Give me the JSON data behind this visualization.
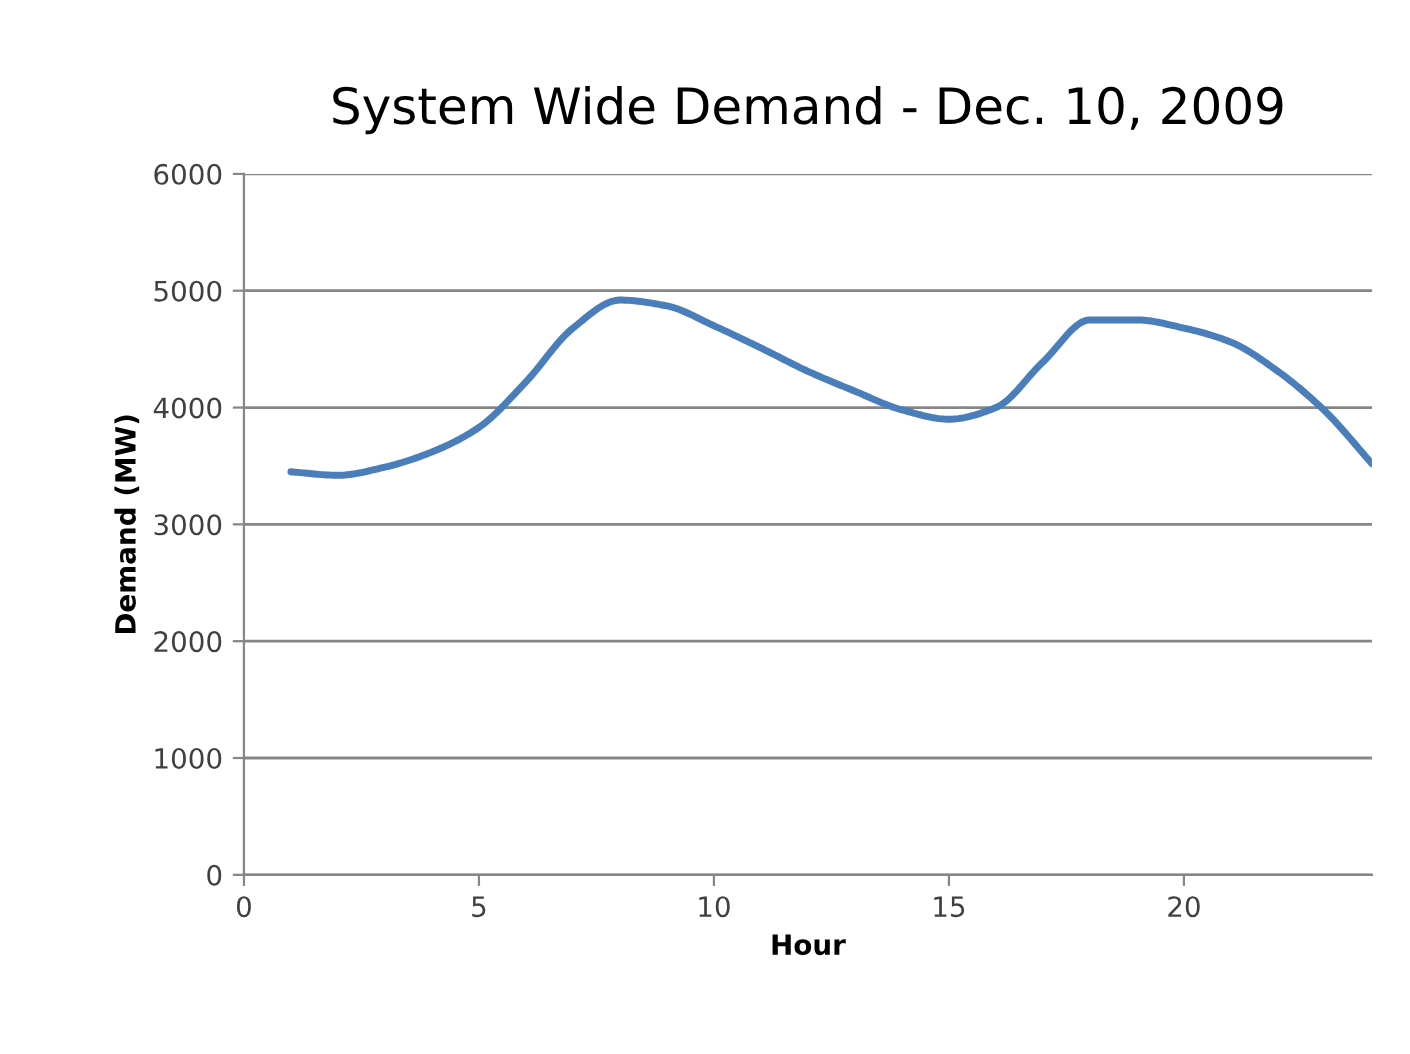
{
  "chart_data": {
    "type": "line",
    "title": "System Wide Demand - Dec. 10, 2009",
    "xlabel": "Hour",
    "ylabel": "Demand (MW)",
    "x": [
      1,
      2,
      3,
      4,
      5,
      6,
      7,
      8,
      9,
      10,
      11,
      12,
      13,
      14,
      15,
      16,
      17,
      18,
      19,
      20,
      21,
      22,
      23,
      24
    ],
    "series": [
      {
        "color": "#4a7ebb",
        "values": [
          3450,
          3420,
          3490,
          3620,
          3830,
          4220,
          4680,
          4920,
          4870,
          4700,
          4510,
          4310,
          4140,
          3980,
          3900,
          4000,
          4390,
          4750,
          4750,
          4680,
          4560,
          4310,
          3970,
          3520
        ]
      }
    ],
    "xlim": [
      0,
      24
    ],
    "xticks": [
      0,
      5,
      10,
      15,
      20
    ],
    "ylim": [
      0,
      6000
    ],
    "yticks": [
      0,
      1000,
      2000,
      3000,
      4000,
      5000,
      6000
    ],
    "grid": "y",
    "legend": false,
    "marker": "none",
    "line_style": "solid"
  }
}
